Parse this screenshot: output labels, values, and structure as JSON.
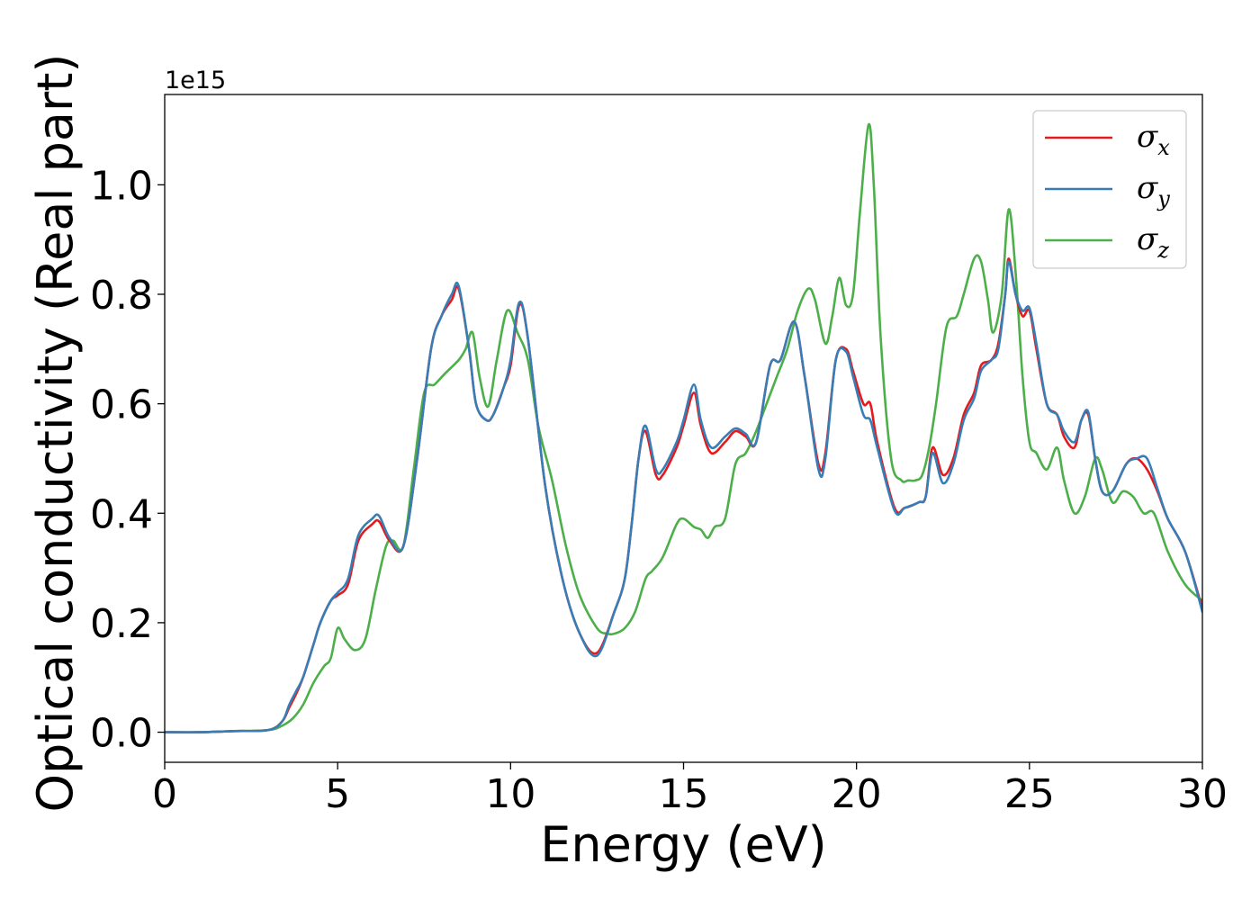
{
  "chart_data": {
    "type": "line",
    "xlabel": "Energy (eV)",
    "ylabel": "Optical conductivity (Real part)",
    "y_offset_label": "1e15",
    "xlim": [
      0,
      30
    ],
    "ylim": [
      -0.055,
      1.165
    ],
    "x_ticks": [
      0,
      5,
      10,
      15,
      20,
      25,
      30
    ],
    "x_tick_labels": [
      "0",
      "5",
      "10",
      "15",
      "20",
      "25",
      "30"
    ],
    "y_ticks": [
      0.0,
      0.2,
      0.4,
      0.6,
      0.8,
      1.0
    ],
    "y_tick_labels": [
      "0.0",
      "0.2",
      "0.4",
      "0.6",
      "0.8",
      "1.0"
    ],
    "grid": false,
    "legend_position": "top-right",
    "series": [
      {
        "name": "σx",
        "symbol": "σ",
        "subscript": "x",
        "color": "#e41a1c",
        "x": [
          0,
          1,
          2,
          3,
          3.4,
          3.6,
          3.8,
          4.0,
          4.3,
          4.5,
          4.8,
          5.0,
          5.3,
          5.6,
          6.0,
          6.2,
          6.5,
          6.9,
          7.3,
          7.7,
          8.0,
          8.3,
          8.5,
          8.8,
          9.0,
          9.3,
          9.5,
          9.8,
          10.0,
          10.25,
          10.5,
          11.0,
          11.5,
          12.0,
          12.5,
          13.0,
          13.3,
          13.5,
          13.7,
          13.9,
          14.2,
          14.4,
          14.8,
          15.0,
          15.3,
          15.5,
          15.8,
          16.2,
          16.5,
          16.8,
          17.1,
          17.5,
          17.8,
          18.2,
          18.5,
          18.9,
          19.1,
          19.4,
          19.7,
          19.9,
          20.2,
          20.4,
          20.6,
          21.1,
          21.4,
          21.8,
          22.0,
          22.2,
          22.5,
          22.8,
          23.1,
          23.4,
          23.6,
          23.9,
          24.1,
          24.3,
          24.4,
          24.6,
          24.8,
          25.0,
          25.2,
          25.5,
          25.8,
          26.0,
          26.3,
          26.5,
          26.7,
          26.9,
          27.1,
          27.4,
          27.8,
          28.1,
          28.4,
          28.7,
          29.0,
          29.5,
          30.0
        ],
        "y": [
          0.0,
          0.0,
          0.002,
          0.004,
          0.02,
          0.045,
          0.07,
          0.1,
          0.16,
          0.2,
          0.24,
          0.25,
          0.27,
          0.35,
          0.38,
          0.385,
          0.35,
          0.34,
          0.5,
          0.7,
          0.76,
          0.79,
          0.81,
          0.7,
          0.6,
          0.57,
          0.58,
          0.63,
          0.67,
          0.78,
          0.72,
          0.45,
          0.28,
          0.18,
          0.145,
          0.22,
          0.28,
          0.38,
          0.5,
          0.55,
          0.47,
          0.47,
          0.52,
          0.56,
          0.62,
          0.56,
          0.51,
          0.53,
          0.55,
          0.54,
          0.53,
          0.67,
          0.68,
          0.75,
          0.65,
          0.49,
          0.51,
          0.68,
          0.7,
          0.66,
          0.6,
          0.6,
          0.53,
          0.41,
          0.41,
          0.42,
          0.43,
          0.52,
          0.47,
          0.5,
          0.58,
          0.62,
          0.67,
          0.68,
          0.71,
          0.8,
          0.865,
          0.8,
          0.76,
          0.77,
          0.7,
          0.6,
          0.58,
          0.54,
          0.52,
          0.57,
          0.58,
          0.5,
          0.44,
          0.44,
          0.49,
          0.5,
          0.48,
          0.44,
          0.39,
          0.33,
          0.225
        ]
      },
      {
        "name": "σy",
        "symbol": "σ",
        "subscript": "y",
        "color": "#377eb8",
        "x": [
          0,
          1,
          2,
          3,
          3.4,
          3.6,
          3.8,
          4.0,
          4.3,
          4.5,
          4.8,
          5.0,
          5.3,
          5.6,
          6.0,
          6.2,
          6.5,
          6.9,
          7.3,
          7.7,
          8.0,
          8.3,
          8.5,
          8.8,
          9.0,
          9.3,
          9.5,
          9.8,
          10.0,
          10.25,
          10.5,
          11.0,
          11.5,
          12.0,
          12.5,
          13.0,
          13.3,
          13.5,
          13.7,
          13.9,
          14.2,
          14.4,
          14.8,
          15.0,
          15.3,
          15.5,
          15.8,
          16.2,
          16.5,
          16.8,
          17.1,
          17.5,
          17.8,
          18.2,
          18.5,
          18.9,
          19.1,
          19.4,
          19.7,
          19.9,
          20.2,
          20.4,
          20.6,
          21.1,
          21.4,
          21.8,
          22.0,
          22.2,
          22.5,
          22.8,
          23.1,
          23.4,
          23.6,
          23.9,
          24.1,
          24.3,
          24.4,
          24.6,
          24.8,
          25.0,
          25.2,
          25.5,
          25.8,
          26.0,
          26.3,
          26.5,
          26.7,
          26.9,
          27.1,
          27.4,
          27.8,
          28.1,
          28.4,
          28.7,
          29.0,
          29.5,
          30.0
        ],
        "y": [
          0.0,
          0.0,
          0.002,
          0.004,
          0.02,
          0.05,
          0.075,
          0.1,
          0.16,
          0.2,
          0.24,
          0.255,
          0.28,
          0.36,
          0.39,
          0.395,
          0.355,
          0.34,
          0.5,
          0.7,
          0.76,
          0.8,
          0.815,
          0.7,
          0.6,
          0.57,
          0.58,
          0.63,
          0.68,
          0.785,
          0.72,
          0.45,
          0.28,
          0.18,
          0.14,
          0.22,
          0.28,
          0.38,
          0.5,
          0.56,
          0.48,
          0.48,
          0.53,
          0.57,
          0.635,
          0.57,
          0.52,
          0.54,
          0.555,
          0.545,
          0.53,
          0.67,
          0.68,
          0.75,
          0.65,
          0.48,
          0.5,
          0.68,
          0.695,
          0.65,
          0.58,
          0.57,
          0.52,
          0.405,
          0.41,
          0.42,
          0.43,
          0.51,
          0.455,
          0.49,
          0.57,
          0.61,
          0.66,
          0.68,
          0.7,
          0.8,
          0.86,
          0.8,
          0.77,
          0.775,
          0.71,
          0.6,
          0.58,
          0.55,
          0.53,
          0.57,
          0.585,
          0.5,
          0.44,
          0.44,
          0.49,
          0.5,
          0.5,
          0.445,
          0.39,
          0.33,
          0.22
        ]
      },
      {
        "name": "σz",
        "symbol": "σ",
        "subscript": "z",
        "color": "#4daf4a",
        "x": [
          0,
          1,
          2,
          3,
          3.4,
          3.7,
          4.0,
          4.3,
          4.6,
          4.8,
          5.0,
          5.2,
          5.5,
          5.8,
          6.1,
          6.4,
          6.6,
          6.9,
          7.2,
          7.5,
          7.8,
          8.1,
          8.5,
          8.7,
          8.9,
          9.1,
          9.35,
          9.6,
          9.9,
          10.2,
          10.5,
          10.8,
          11.2,
          11.6,
          12.0,
          12.5,
          12.8,
          13.0,
          13.3,
          13.6,
          13.9,
          14.1,
          14.4,
          14.8,
          15.0,
          15.3,
          15.5,
          15.7,
          15.9,
          16.2,
          16.5,
          16.8,
          17.1,
          17.4,
          17.7,
          18.0,
          18.3,
          18.6,
          18.8,
          19.1,
          19.3,
          19.5,
          19.7,
          19.9,
          20.1,
          20.35,
          20.5,
          20.7,
          21.0,
          21.3,
          21.5,
          21.7,
          21.9,
          22.1,
          22.3,
          22.6,
          22.9,
          23.1,
          23.4,
          23.6,
          23.8,
          23.95,
          24.2,
          24.4,
          24.6,
          24.8,
          25.0,
          25.2,
          25.5,
          25.8,
          26.0,
          26.3,
          26.6,
          26.9,
          27.1,
          27.4,
          27.7,
          28.0,
          28.3,
          28.6,
          29.0,
          29.5,
          30.0
        ],
        "y": [
          0.0,
          0.0,
          0.002,
          0.004,
          0.012,
          0.025,
          0.05,
          0.09,
          0.12,
          0.135,
          0.19,
          0.17,
          0.15,
          0.17,
          0.26,
          0.34,
          0.35,
          0.34,
          0.48,
          0.62,
          0.635,
          0.655,
          0.68,
          0.7,
          0.73,
          0.65,
          0.595,
          0.68,
          0.77,
          0.73,
          0.68,
          0.56,
          0.46,
          0.34,
          0.25,
          0.19,
          0.18,
          0.18,
          0.19,
          0.22,
          0.28,
          0.295,
          0.32,
          0.38,
          0.39,
          0.375,
          0.37,
          0.355,
          0.375,
          0.39,
          0.49,
          0.51,
          0.55,
          0.6,
          0.65,
          0.7,
          0.77,
          0.81,
          0.79,
          0.71,
          0.76,
          0.83,
          0.78,
          0.8,
          0.95,
          1.11,
          1.0,
          0.72,
          0.5,
          0.46,
          0.46,
          0.46,
          0.47,
          0.52,
          0.6,
          0.74,
          0.76,
          0.8,
          0.865,
          0.86,
          0.79,
          0.73,
          0.8,
          0.955,
          0.84,
          0.65,
          0.53,
          0.51,
          0.48,
          0.52,
          0.46,
          0.4,
          0.43,
          0.5,
          0.48,
          0.42,
          0.44,
          0.43,
          0.4,
          0.4,
          0.33,
          0.27,
          0.24
        ]
      }
    ]
  }
}
